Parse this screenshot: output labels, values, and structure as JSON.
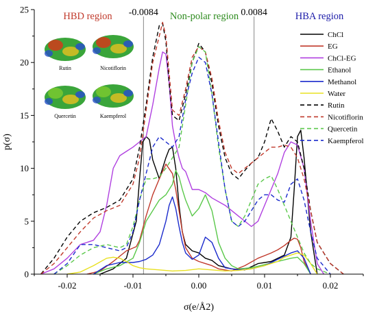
{
  "chart_data": {
    "type": "line",
    "xlabel": "σ(e/Å2)",
    "ylabel": "p(σ)",
    "xlim": [
      -0.025,
      0.025
    ],
    "ylim": [
      0,
      25
    ],
    "x_ticks": [
      -0.02,
      -0.01,
      0.0,
      0.01,
      0.02
    ],
    "x_tick_labels": [
      "-0.02",
      "-0.01",
      "0.00",
      "0.01",
      "0.02"
    ],
    "y_ticks": [
      0,
      5,
      10,
      15,
      20,
      25
    ],
    "y_tick_labels": [
      "0",
      "5",
      "10",
      "15",
      "20",
      "25"
    ],
    "thresholds": [
      {
        "value": -0.0084,
        "label": "-0.0084"
      },
      {
        "value": 0.0084,
        "label": "0.0084"
      }
    ],
    "regions": [
      {
        "label": "HBD region",
        "color": "#c0392b"
      },
      {
        "label": "Non-polar region",
        "color": "#2e8b1f"
      },
      {
        "label": "HBA region",
        "color": "#1a1aa8"
      }
    ],
    "legend_position": "top-right",
    "molecule_labels": [
      "Rutin",
      "Nicotiflorin",
      "Quercetin",
      "Kaempferol"
    ],
    "series": [
      {
        "name": "ChCl",
        "color": "#000000",
        "dash": "solid",
        "x": [
          -0.015,
          -0.013,
          -0.011,
          -0.0095,
          -0.009,
          -0.0085,
          -0.008,
          -0.0075,
          -0.007,
          -0.006,
          -0.005,
          -0.0045,
          -0.004,
          -0.0035,
          -0.003,
          -0.0025,
          -0.002,
          -0.001,
          0.0,
          0.001,
          0.002,
          0.003,
          0.005,
          0.007,
          0.009,
          0.011,
          0.013,
          0.014,
          0.0145,
          0.015,
          0.0155,
          0.016,
          0.017,
          0.018
        ],
        "y": [
          0,
          0.5,
          1.5,
          5,
          9,
          12.5,
          13,
          12.7,
          10.8,
          9,
          11,
          11.8,
          12,
          10,
          6.5,
          4,
          2.8,
          2.2,
          2.0,
          1.5,
          1.3,
          0.8,
          0.5,
          0.4,
          1.0,
          1.2,
          1.8,
          3.5,
          8,
          13,
          13.6,
          11,
          4,
          0
        ]
      },
      {
        "name": "EG",
        "color": "#c0392b",
        "dash": "solid",
        "x": [
          -0.017,
          -0.015,
          -0.013,
          -0.011,
          -0.0095,
          -0.009,
          -0.008,
          -0.007,
          -0.006,
          -0.005,
          -0.004,
          -0.0035,
          -0.003,
          -0.0025,
          -0.002,
          -0.001,
          0.0,
          0.001,
          0.002,
          0.003,
          0.005,
          0.007,
          0.009,
          0.011,
          0.012,
          0.013,
          0.014,
          0.0145,
          0.015,
          0.0155,
          0.016,
          0.017
        ],
        "y": [
          0,
          0.3,
          1.2,
          2.2,
          2.6,
          3.2,
          5.5,
          7.5,
          9.0,
          10.4,
          9.5,
          8,
          6,
          4,
          2.5,
          1.5,
          1.2,
          1.0,
          0.8,
          0.5,
          0.3,
          0.8,
          1.5,
          2.0,
          2.3,
          2.7,
          3.2,
          3.4,
          3.3,
          2.5,
          1.2,
          0
        ]
      },
      {
        "name": "ChCl-EG",
        "color": "#b040e0",
        "dash": "solid",
        "x": [
          -0.024,
          -0.022,
          -0.02,
          -0.018,
          -0.016,
          -0.015,
          -0.014,
          -0.013,
          -0.012,
          -0.011,
          -0.01,
          -0.009,
          -0.008,
          -0.007,
          -0.006,
          -0.0055,
          -0.005,
          -0.0045,
          -0.004,
          -0.0035,
          -0.003,
          -0.0025,
          -0.002,
          -0.001,
          0.0,
          0.001,
          0.002,
          0.004,
          0.006,
          0.008,
          0.009,
          0.01,
          0.011,
          0.012,
          0.013,
          0.014,
          0.015,
          0.016,
          0.017,
          0.018,
          0.019
        ],
        "y": [
          0,
          0.5,
          1.5,
          2.8,
          3.2,
          4.0,
          6.5,
          10.0,
          11.2,
          11.6,
          12.0,
          12.5,
          13.0,
          16.0,
          19.5,
          21.0,
          20.8,
          18.0,
          14.0,
          12.3,
          11.0,
          10.0,
          9.7,
          8.0,
          8.0,
          7.7,
          7.2,
          6.5,
          5.5,
          4.5,
          5.0,
          6.5,
          8.0,
          9.5,
          11.5,
          12.5,
          12.2,
          10.0,
          5.0,
          1.0,
          0
        ]
      },
      {
        "name": "Ethanol",
        "color": "#5ac84a",
        "dash": "solid",
        "x": [
          -0.016,
          -0.014,
          -0.012,
          -0.01,
          -0.009,
          -0.008,
          -0.007,
          -0.006,
          -0.005,
          -0.004,
          -0.0035,
          -0.003,
          -0.0025,
          -0.002,
          -0.001,
          0.0,
          0.001,
          0.002,
          0.003,
          0.004,
          0.005,
          0.006,
          0.008,
          0.01,
          0.012,
          0.014,
          0.015,
          0.016,
          0.017
        ],
        "y": [
          0,
          0.5,
          0.8,
          1.5,
          3.0,
          5.0,
          6.0,
          7.0,
          7.5,
          8.5,
          9.8,
          9.2,
          8.0,
          7.0,
          5.5,
          6.2,
          7.5,
          6.0,
          3.0,
          1.5,
          0.8,
          0.5,
          0.6,
          0.9,
          1.2,
          1.5,
          1.6,
          1.0,
          0
        ]
      },
      {
        "name": "Methanol",
        "color": "#1a2acc",
        "dash": "solid",
        "x": [
          -0.016,
          -0.014,
          -0.012,
          -0.01,
          -0.009,
          -0.008,
          -0.007,
          -0.006,
          -0.005,
          -0.0045,
          -0.004,
          -0.0035,
          -0.003,
          -0.0025,
          -0.002,
          -0.001,
          0.0,
          0.001,
          0.002,
          0.003,
          0.004,
          0.006,
          0.008,
          0.01,
          0.012,
          0.014,
          0.015,
          0.016,
          0.017
        ],
        "y": [
          0,
          0.8,
          1.1,
          1.1,
          1.2,
          1.4,
          1.8,
          2.8,
          5.0,
          6.5,
          7.3,
          6.2,
          4.5,
          3.0,
          2.0,
          1.4,
          1.8,
          3.5,
          3.0,
          1.5,
          0.6,
          0.4,
          0.5,
          0.8,
          1.4,
          2.0,
          2.2,
          1.5,
          0
        ]
      },
      {
        "name": "Water",
        "color": "#e8e020",
        "dash": "solid",
        "x": [
          -0.02,
          -0.018,
          -0.016,
          -0.014,
          -0.013,
          -0.012,
          -0.011,
          -0.01,
          -0.009,
          -0.008,
          -0.006,
          -0.004,
          -0.002,
          0.0,
          0.002,
          0.004,
          0.006,
          0.008,
          0.01,
          0.012,
          0.013,
          0.014,
          0.015,
          0.016,
          0.017,
          0.018
        ],
        "y": [
          0,
          0.2,
          0.8,
          1.5,
          1.6,
          1.5,
          1.2,
          0.8,
          0.6,
          0.5,
          0.4,
          0.3,
          0.35,
          0.5,
          0.4,
          0.3,
          0.35,
          0.5,
          0.8,
          1.2,
          1.6,
          1.8,
          2.0,
          1.8,
          1.0,
          0
        ]
      },
      {
        "name": "Rutin",
        "color": "#000000",
        "dash": "dashed",
        "x": [
          -0.024,
          -0.022,
          -0.02,
          -0.018,
          -0.016,
          -0.014,
          -0.012,
          -0.01,
          -0.009,
          -0.008,
          -0.007,
          -0.006,
          -0.0055,
          -0.005,
          -0.0045,
          -0.004,
          -0.003,
          -0.002,
          -0.001,
          0.0,
          0.001,
          0.002,
          0.003,
          0.004,
          0.005,
          0.006,
          0.007,
          0.008,
          0.009,
          0.01,
          0.011,
          0.012,
          0.013,
          0.014,
          0.015,
          0.016,
          0.017,
          0.018,
          0.02,
          0.022
        ],
        "y": [
          0,
          1.5,
          3.5,
          5.0,
          5.8,
          6.3,
          7.0,
          9.0,
          12.0,
          16.0,
          20.5,
          23.5,
          23.7,
          22.0,
          18.0,
          15.0,
          14.5,
          17.0,
          20.0,
          21.8,
          21.0,
          18.0,
          14.0,
          11.0,
          9.5,
          9.0,
          9.8,
          10.5,
          11.0,
          12.5,
          14.7,
          13.5,
          12.0,
          13.0,
          12.5,
          10.0,
          6.0,
          3.0,
          1.0,
          0
        ]
      },
      {
        "name": "Nicotiflorin",
        "color": "#c0392b",
        "dash": "dashed",
        "x": [
          -0.024,
          -0.022,
          -0.02,
          -0.018,
          -0.016,
          -0.014,
          -0.012,
          -0.01,
          -0.009,
          -0.008,
          -0.007,
          -0.006,
          -0.0055,
          -0.005,
          -0.0045,
          -0.004,
          -0.003,
          -0.002,
          -0.001,
          0.0,
          0.001,
          0.002,
          0.003,
          0.004,
          0.005,
          0.006,
          0.007,
          0.008,
          0.009,
          0.01,
          0.011,
          0.012,
          0.013,
          0.014,
          0.015,
          0.016,
          0.017,
          0.018,
          0.02,
          0.022
        ],
        "y": [
          0,
          1.0,
          2.5,
          4.0,
          5.3,
          6.0,
          6.5,
          8.5,
          11.0,
          15.5,
          20.0,
          22.5,
          23.8,
          22.5,
          19.0,
          15.5,
          15.0,
          17.5,
          20.5,
          21.5,
          21.0,
          18.5,
          14.5,
          11.5,
          10.0,
          9.5,
          10.0,
          10.5,
          11.0,
          11.5,
          12.0,
          12.0,
          12.2,
          12.0,
          11.0,
          9.0,
          6.0,
          3.0,
          1.0,
          0
        ]
      },
      {
        "name": "Quercetin",
        "color": "#5ac84a",
        "dash": "dashed",
        "x": [
          -0.022,
          -0.02,
          -0.018,
          -0.016,
          -0.014,
          -0.012,
          -0.011,
          -0.01,
          -0.009,
          -0.008,
          -0.007,
          -0.006,
          -0.005,
          -0.004,
          -0.003,
          -0.002,
          -0.001,
          0.0,
          0.001,
          0.002,
          0.003,
          0.004,
          0.005,
          0.006,
          0.007,
          0.008,
          0.009,
          0.01,
          0.011,
          0.012,
          0.013,
          0.014,
          0.015,
          0.016,
          0.017,
          0.018,
          0.02
        ],
        "y": [
          0,
          0.8,
          1.8,
          2.5,
          2.8,
          2.5,
          2.8,
          4.5,
          7.0,
          9.0,
          9.0,
          9.2,
          10.0,
          11.0,
          12.0,
          16.0,
          20.0,
          21.5,
          21.0,
          17.0,
          12.0,
          8.0,
          5.0,
          4.5,
          5.5,
          7.0,
          8.5,
          9.0,
          9.3,
          8.0,
          6.5,
          5.0,
          3.5,
          2.0,
          1.0,
          0.5,
          0
        ]
      },
      {
        "name": "Kaempferol",
        "color": "#1a2acc",
        "dash": "dashed",
        "x": [
          -0.022,
          -0.02,
          -0.018,
          -0.016,
          -0.014,
          -0.012,
          -0.011,
          -0.01,
          -0.009,
          -0.008,
          -0.007,
          -0.006,
          -0.005,
          -0.004,
          -0.003,
          -0.002,
          -0.001,
          0.0,
          0.001,
          0.002,
          0.003,
          0.004,
          0.005,
          0.006,
          0.007,
          0.008,
          0.009,
          0.01,
          0.011,
          0.012,
          0.013,
          0.014,
          0.015,
          0.016,
          0.017,
          0.018,
          0.02
        ],
        "y": [
          0,
          1.0,
          2.8,
          2.8,
          2.5,
          2.2,
          2.5,
          4.0,
          7.0,
          9.5,
          12.0,
          13.0,
          12.5,
          12.0,
          13.0,
          16.5,
          19.0,
          20.5,
          20.0,
          17.0,
          12.5,
          8.0,
          5.0,
          4.5,
          5.0,
          6.0,
          7.0,
          7.5,
          7.5,
          7.0,
          6.8,
          8.5,
          9.0,
          7.0,
          4.0,
          1.5,
          0
        ]
      }
    ]
  }
}
